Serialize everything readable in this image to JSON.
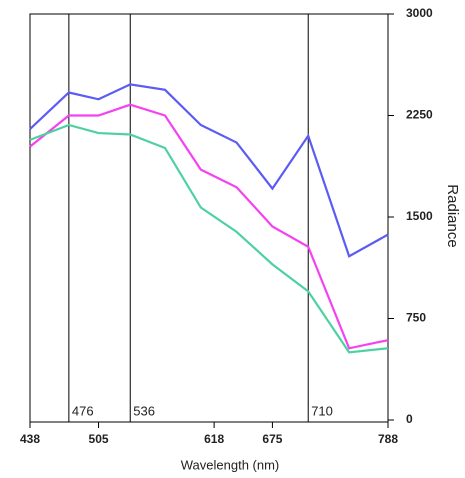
{
  "chart_data": {
    "type": "line",
    "x_label": "Wavelength (nm)",
    "y_label": "Radiance",
    "x": [
      438,
      476,
      505,
      536,
      570,
      605,
      640,
      675,
      710,
      750,
      788
    ],
    "series": [
      {
        "color": "#5b5bf5",
        "values": [
          2150,
          2420,
          2370,
          2480,
          2440,
          2180,
          2050,
          1710,
          2100,
          1210,
          1370
        ]
      },
      {
        "color": "#f542f0",
        "values": [
          2020,
          2250,
          2250,
          2330,
          2250,
          1850,
          1720,
          1430,
          1280,
          530,
          590
        ]
      },
      {
        "color": "#4dd1a3",
        "values": [
          2070,
          2180,
          2120,
          2110,
          2010,
          1570,
          1390,
          1150,
          950,
          500,
          530
        ]
      }
    ],
    "xlim": [
      438,
      788
    ],
    "xticks": [
      438,
      505,
      618,
      675,
      788
    ],
    "ylim": [
      0,
      3000
    ],
    "yticks": [
      0,
      750,
      1500,
      2250,
      3000
    ],
    "vlines": [
      476,
      536,
      710
    ]
  }
}
